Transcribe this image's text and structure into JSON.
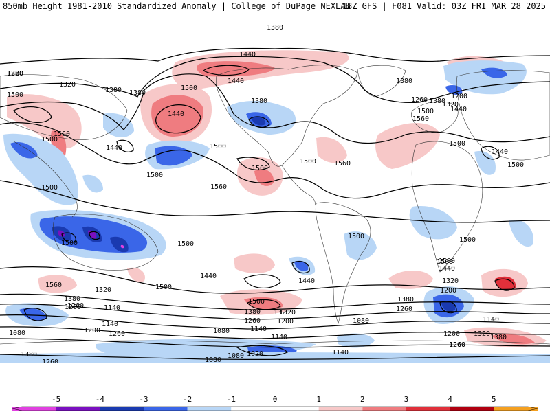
{
  "header": {
    "left": "850mb Height 1981-2010 Standardized Anomaly | College of DuPage NEXLAB",
    "right": "18Z GFS | F081 Valid: 03Z FRI MAR 28 2025"
  },
  "colors": {
    "neg5": "#e040e0",
    "neg4": "#7a10c0",
    "neg3": "#1a3ab0",
    "neg2": "#3a66e8",
    "neg1": "#b8d6f6",
    "zero": "#ffffff",
    "pos1": "#f7c8c8",
    "pos2": "#ef7c80",
    "pos3": "#e0303a",
    "pos4": "#b00010",
    "pos5": "#f4a020",
    "land_outline": "#333333",
    "contour": "#000000"
  },
  "contour_labels": [
    {
      "text": "1380"
    },
    {
      "text": "1440"
    },
    {
      "text": "1320"
    },
    {
      "text": "1260"
    },
    {
      "text": "1320"
    },
    {
      "text": "1380"
    },
    {
      "text": "1380"
    },
    {
      "text": "1500"
    },
    {
      "text": "1440"
    },
    {
      "text": "1380"
    },
    {
      "text": "1500"
    },
    {
      "text": "1560"
    },
    {
      "text": "1440"
    },
    {
      "text": "1440"
    },
    {
      "text": "1380"
    },
    {
      "text": "1500"
    },
    {
      "text": "1560"
    },
    {
      "text": "1500"
    },
    {
      "text": "1500"
    },
    {
      "text": "1500"
    },
    {
      "text": "1500"
    },
    {
      "text": "1560"
    },
    {
      "text": "1500"
    },
    {
      "text": "1560"
    },
    {
      "text": "1500"
    },
    {
      "text": "1500"
    },
    {
      "text": "1440"
    },
    {
      "text": "1500"
    },
    {
      "text": "1380"
    },
    {
      "text": "1260"
    },
    {
      "text": "1320"
    },
    {
      "text": "1440"
    },
    {
      "text": "1200"
    },
    {
      "text": "1500"
    },
    {
      "text": "1440"
    },
    {
      "text": "1500"
    },
    {
      "text": "1500"
    },
    {
      "text": "1500"
    },
    {
      "text": "1500"
    },
    {
      "text": "1440"
    },
    {
      "text": "1500"
    },
    {
      "text": "1560"
    },
    {
      "text": "1380"
    },
    {
      "text": "1320"
    },
    {
      "text": "1200"
    },
    {
      "text": "1260"
    },
    {
      "text": "1140"
    },
    {
      "text": "1080"
    },
    {
      "text": "1200"
    },
    {
      "text": "1140"
    },
    {
      "text": "1260"
    },
    {
      "text": "1380"
    },
    {
      "text": "1260"
    },
    {
      "text": "1320"
    },
    {
      "text": "1500"
    },
    {
      "text": "1380"
    },
    {
      "text": "1260"
    },
    {
      "text": "1320"
    },
    {
      "text": "1200"
    },
    {
      "text": "1080"
    },
    {
      "text": "1140"
    },
    {
      "text": "1080"
    },
    {
      "text": "1140"
    },
    {
      "text": "1080"
    },
    {
      "text": "1020"
    },
    {
      "text": "1140"
    },
    {
      "text": "1080"
    },
    {
      "text": "1500"
    },
    {
      "text": "1440"
    },
    {
      "text": "1320"
    },
    {
      "text": "1200"
    },
    {
      "text": "1260"
    },
    {
      "text": "1380"
    },
    {
      "text": "1260"
    },
    {
      "text": "1140"
    },
    {
      "text": "1200"
    },
    {
      "text": "1320"
    },
    {
      "text": "1380"
    },
    {
      "text": "1260"
    }
  ],
  "colorbar": {
    "ticks": [
      "-5",
      "-4",
      "-3",
      "-2",
      "-1",
      "0",
      "1",
      "2",
      "3",
      "4",
      "5"
    ],
    "min": -6,
    "max": 6
  }
}
